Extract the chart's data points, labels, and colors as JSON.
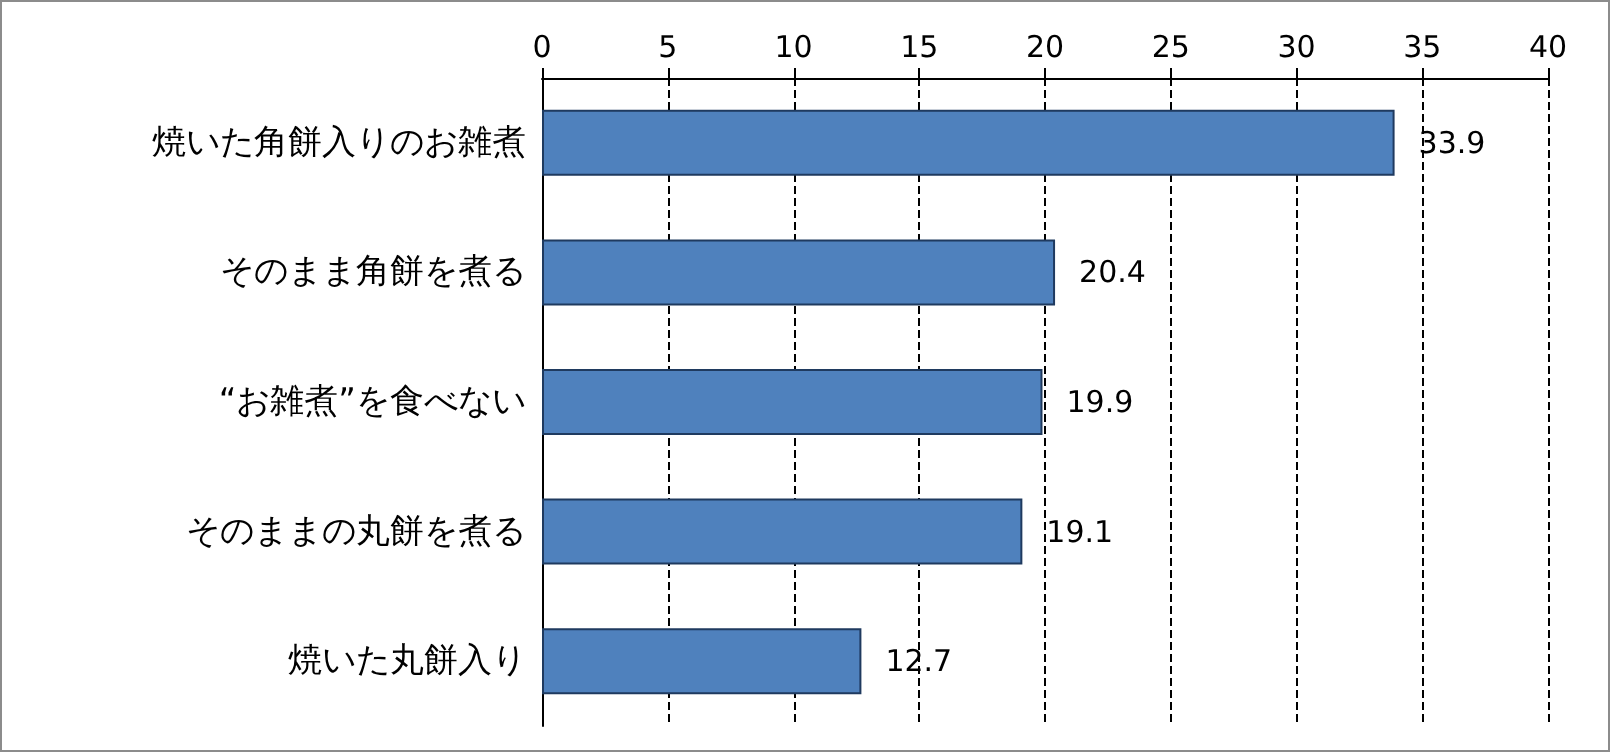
{
  "chart_data": {
    "type": "bar",
    "orientation": "horizontal",
    "categories": [
      "焼いた角餅入りのお雑煮",
      "そのまま角餅を煮る",
      "“お雑煮”を食べない",
      "そのままの丸餅を煮る",
      "焼いた丸餅入り"
    ],
    "values": [
      33.9,
      20.4,
      19.9,
      19.1,
      12.7
    ],
    "color": "#4f81bd",
    "xlim": [
      0,
      40
    ],
    "xticks": [
      0,
      5,
      10,
      15,
      20,
      25,
      30,
      35,
      40
    ],
    "grid": "x",
    "data_labels": true
  }
}
